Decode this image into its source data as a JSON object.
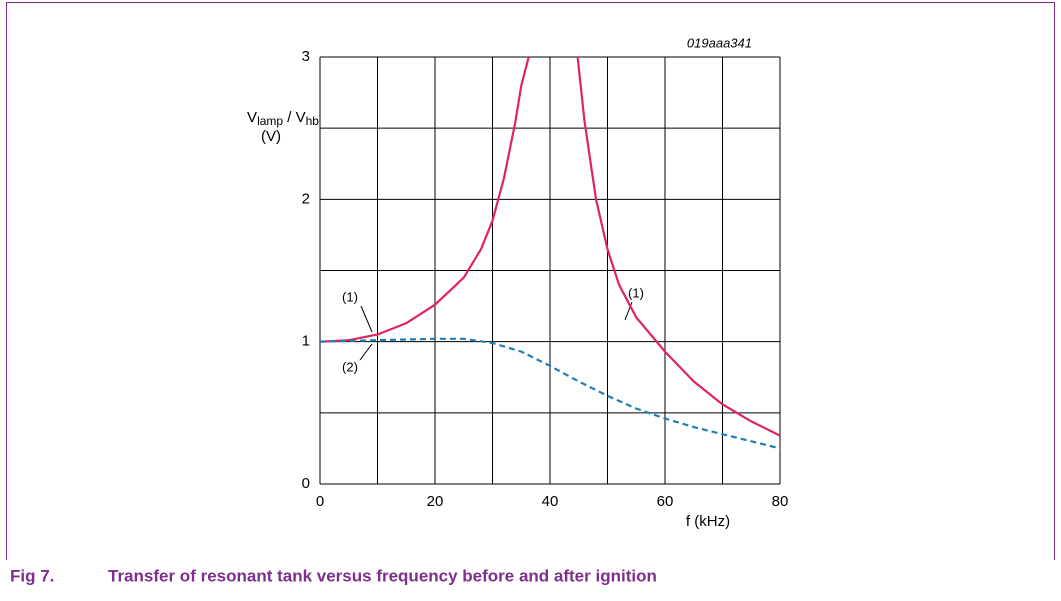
{
  "chart_data": {
    "type": "line",
    "figure_id": "019aaa341",
    "ylabel": [
      "V",
      "lamp",
      " / V",
      "hb"
    ],
    "ylabel_unit": "(V)",
    "xlabel": "f (kHz)",
    "caption_number": "Fig 7.",
    "caption": "Transfer of resonant tank versus frequency before and after ignition",
    "xlim": [
      0,
      80
    ],
    "xticks": [
      0,
      20,
      40,
      60,
      80
    ],
    "ylim": [
      0,
      3
    ],
    "yticks": [
      0,
      1,
      2,
      3
    ],
    "xgrid": [
      0,
      10,
      20,
      30,
      40,
      50,
      60,
      70,
      80
    ],
    "ygrid": [
      0,
      0.5,
      1,
      1.5,
      2,
      2.5,
      3
    ],
    "grid": true,
    "series": [
      {
        "color": "#e0245e",
        "dashed": false,
        "x": [
          0,
          5,
          10,
          15,
          20,
          25,
          28,
          30,
          32,
          34,
          35,
          36.3,
          42,
          44.8,
          46,
          48,
          50,
          52,
          55,
          60,
          65,
          70,
          75,
          80
        ],
        "values": [
          1.0,
          1.01,
          1.05,
          1.13,
          1.26,
          1.45,
          1.65,
          1.85,
          2.15,
          2.55,
          2.8,
          3.0,
          null,
          3.0,
          2.55,
          2.0,
          1.65,
          1.4,
          1.17,
          0.93,
          0.72,
          0.56,
          0.44,
          0.34
        ]
      },
      {
        "color": "#1f7fb4",
        "dashed": true,
        "x": [
          0,
          10,
          20,
          25,
          30,
          35,
          40,
          45,
          50,
          55,
          60,
          65,
          70,
          75,
          80
        ],
        "values": [
          1.0,
          1.01,
          1.02,
          1.02,
          0.99,
          0.93,
          0.83,
          0.72,
          0.62,
          0.53,
          0.46,
          0.4,
          0.35,
          0.3,
          0.25
        ]
      }
    ],
    "annotations": [
      "(1)",
      "(1)",
      "(2)"
    ]
  }
}
